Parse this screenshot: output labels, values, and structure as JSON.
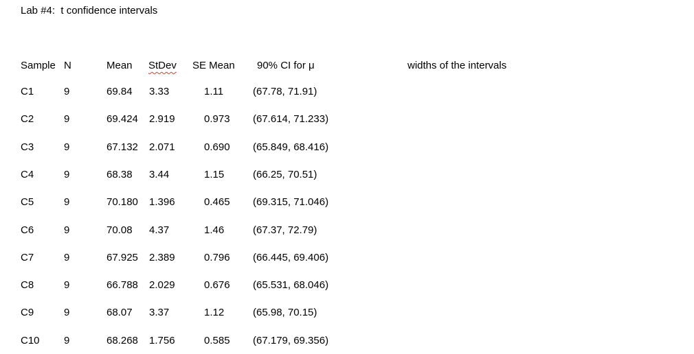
{
  "document": {
    "title": "Lab #4:  t confidence intervals",
    "annotation": "widths of the intervals"
  },
  "table": {
    "headers": {
      "sample": "Sample",
      "n": "N",
      "mean": "Mean",
      "stdev": "StDev",
      "se_mean": "SE Mean",
      "ci": "90% CI for μ"
    },
    "stdev_has_spellcheck_underline": true,
    "rows": [
      {
        "sample": "C1",
        "n": "9",
        "mean": "69.84",
        "stdev": "3.33",
        "se_mean": "1.11",
        "ci": "(67.78, 71.91)"
      },
      {
        "sample": "C2",
        "n": "9",
        "mean": "69.424",
        "stdev": "2.919",
        "se_mean": "0.973",
        "ci": "(67.614, 71.233)"
      },
      {
        "sample": "C3",
        "n": "9",
        "mean": "67.132",
        "stdev": "2.071",
        "se_mean": "0.690",
        "ci": "(65.849, 68.416)"
      },
      {
        "sample": "C4",
        "n": "9",
        "mean": "68.38",
        "stdev": "3.44",
        "se_mean": "1.15",
        "ci": "(66.25, 70.51)"
      },
      {
        "sample": "C5",
        "n": "9",
        "mean": "70.180",
        "stdev": "1.396",
        "se_mean": "0.465",
        "ci": "(69.315, 71.046)"
      },
      {
        "sample": "C6",
        "n": "9",
        "mean": "70.08",
        "stdev": "4.37",
        "se_mean": "1.46",
        "ci": "(67.37, 72.79)"
      },
      {
        "sample": "C7",
        "n": "9",
        "mean": "67.925",
        "stdev": "2.389",
        "se_mean": "0.796",
        "ci": "(66.445, 69.406)"
      },
      {
        "sample": "C8",
        "n": "9",
        "mean": "66.788",
        "stdev": "2.029",
        "se_mean": "0.676",
        "ci": "(65.531, 68.046)"
      },
      {
        "sample": "C9",
        "n": "9",
        "mean": "68.07",
        "stdev": "3.37",
        "se_mean": "1.12",
        "ci": "(65.98, 70.15)"
      },
      {
        "sample": "C10",
        "n": "9",
        "mean": "68.268",
        "stdev": "1.756",
        "se_mean": "0.585",
        "ci": "(67.179, 69.356)"
      }
    ]
  },
  "colors": {
    "text": "#000000",
    "background": "#ffffff",
    "spellcheck_underline": "#e03c31"
  }
}
